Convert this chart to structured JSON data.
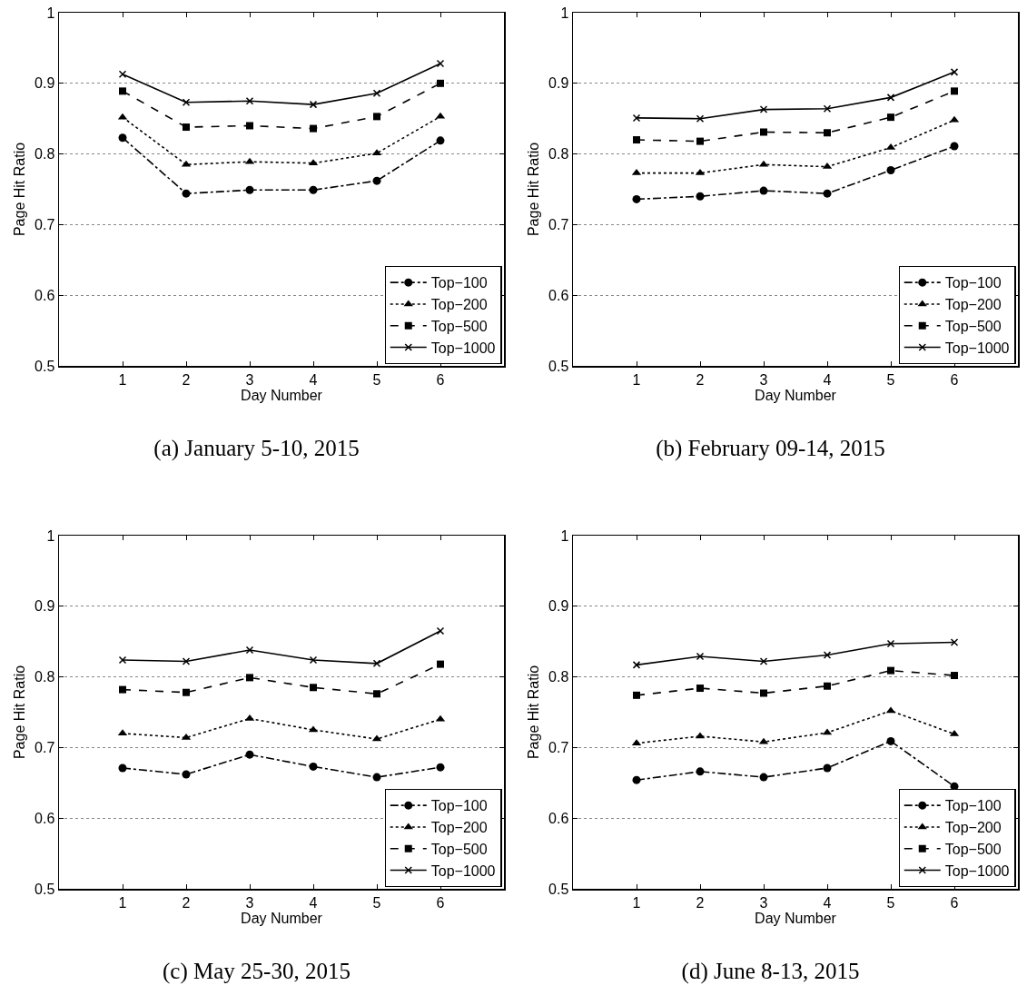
{
  "chart_data": [
    {
      "type": "line",
      "title": "(a) January 5-10, 2015",
      "xlabel": "Day Number",
      "ylabel": "Page Hit Ratio",
      "x": [
        1,
        2,
        3,
        4,
        5,
        6
      ],
      "xlim": [
        0,
        7
      ],
      "xticks": [
        1,
        2,
        3,
        4,
        5,
        6
      ],
      "ylim": [
        0.5,
        1
      ],
      "yticks": [
        0.5,
        0.6,
        0.7,
        0.8,
        0.9,
        1
      ],
      "grid": "y",
      "legend": "bottom right",
      "series": [
        {
          "name": "Top−100",
          "color": "#000000",
          "marker": "circle",
          "line_style": "dashdot",
          "values": [
            0.823,
            0.744,
            0.749,
            0.749,
            0.762,
            0.819
          ]
        },
        {
          "name": "Top−200",
          "color": "#000000",
          "marker": "triangle",
          "line_style": "dotted",
          "values": [
            0.852,
            0.785,
            0.789,
            0.787,
            0.801,
            0.853
          ]
        },
        {
          "name": "Top−500",
          "color": "#000000",
          "marker": "square",
          "line_style": "dashed",
          "values": [
            0.889,
            0.838,
            0.84,
            0.836,
            0.853,
            0.9
          ]
        },
        {
          "name": "Top−1000",
          "color": "#000000",
          "marker": "cross",
          "line_style": "solid",
          "values": [
            0.913,
            0.873,
            0.875,
            0.87,
            0.886,
            0.928
          ]
        }
      ]
    },
    {
      "type": "line",
      "title": "(b) February 09-14, 2015",
      "xlabel": "Day Number",
      "ylabel": "Page Hit Ratio",
      "x": [
        1,
        2,
        3,
        4,
        5,
        6
      ],
      "xlim": [
        0,
        7
      ],
      "xticks": [
        1,
        2,
        3,
        4,
        5,
        6
      ],
      "ylim": [
        0.5,
        1
      ],
      "yticks": [
        0.5,
        0.6,
        0.7,
        0.8,
        0.9,
        1
      ],
      "grid": "y",
      "legend": "bottom right",
      "series": [
        {
          "name": "Top−100",
          "color": "#000000",
          "marker": "circle",
          "line_style": "dashdot",
          "values": [
            0.736,
            0.74,
            0.748,
            0.744,
            0.777,
            0.811
          ]
        },
        {
          "name": "Top−200",
          "color": "#000000",
          "marker": "triangle",
          "line_style": "dotted",
          "values": [
            0.773,
            0.773,
            0.785,
            0.782,
            0.809,
            0.848
          ]
        },
        {
          "name": "Top−500",
          "color": "#000000",
          "marker": "square",
          "line_style": "dashed",
          "values": [
            0.82,
            0.818,
            0.831,
            0.83,
            0.852,
            0.889
          ]
        },
        {
          "name": "Top−1000",
          "color": "#000000",
          "marker": "cross",
          "line_style": "solid",
          "values": [
            0.851,
            0.85,
            0.863,
            0.864,
            0.88,
            0.916
          ]
        }
      ]
    },
    {
      "type": "line",
      "title": "(c) May 25-30, 2015",
      "xlabel": "Day Number",
      "ylabel": "Page Hit Ratio",
      "x": [
        1,
        2,
        3,
        4,
        5,
        6
      ],
      "xlim": [
        0,
        7
      ],
      "xticks": [
        1,
        2,
        3,
        4,
        5,
        6
      ],
      "ylim": [
        0.5,
        1
      ],
      "yticks": [
        0.5,
        0.6,
        0.7,
        0.8,
        0.9,
        1
      ],
      "grid": "y",
      "legend": "bottom right",
      "series": [
        {
          "name": "Top−100",
          "color": "#000000",
          "marker": "circle",
          "line_style": "dashdot",
          "values": [
            0.671,
            0.662,
            0.69,
            0.673,
            0.658,
            0.672
          ]
        },
        {
          "name": "Top−200",
          "color": "#000000",
          "marker": "triangle",
          "line_style": "dotted",
          "values": [
            0.72,
            0.714,
            0.741,
            0.725,
            0.712,
            0.74
          ]
        },
        {
          "name": "Top−500",
          "color": "#000000",
          "marker": "square",
          "line_style": "dashed",
          "values": [
            0.782,
            0.778,
            0.799,
            0.785,
            0.776,
            0.818
          ]
        },
        {
          "name": "Top−1000",
          "color": "#000000",
          "marker": "cross",
          "line_style": "solid",
          "values": [
            0.824,
            0.822,
            0.838,
            0.824,
            0.819,
            0.865
          ]
        }
      ]
    },
    {
      "type": "line",
      "title": "(d) June 8-13, 2015",
      "xlabel": "Day Number",
      "ylabel": "Page Hit Ratio",
      "x": [
        1,
        2,
        3,
        4,
        5,
        6
      ],
      "xlim": [
        0,
        7
      ],
      "xticks": [
        1,
        2,
        3,
        4,
        5,
        6
      ],
      "ylim": [
        0.5,
        1
      ],
      "yticks": [
        0.5,
        0.6,
        0.7,
        0.8,
        0.9,
        1
      ],
      "grid": "y",
      "legend": "bottom right",
      "series": [
        {
          "name": "Top−100",
          "color": "#000000",
          "marker": "circle",
          "line_style": "dashdot",
          "values": [
            0.654,
            0.666,
            0.658,
            0.671,
            0.709,
            0.645
          ]
        },
        {
          "name": "Top−200",
          "color": "#000000",
          "marker": "triangle",
          "line_style": "dotted",
          "values": [
            0.706,
            0.716,
            0.708,
            0.721,
            0.752,
            0.719
          ]
        },
        {
          "name": "Top−500",
          "color": "#000000",
          "marker": "square",
          "line_style": "dashed",
          "values": [
            0.774,
            0.784,
            0.777,
            0.787,
            0.809,
            0.802
          ]
        },
        {
          "name": "Top−1000",
          "color": "#000000",
          "marker": "cross",
          "line_style": "solid",
          "values": [
            0.817,
            0.829,
            0.822,
            0.831,
            0.847,
            0.849
          ]
        }
      ]
    }
  ]
}
